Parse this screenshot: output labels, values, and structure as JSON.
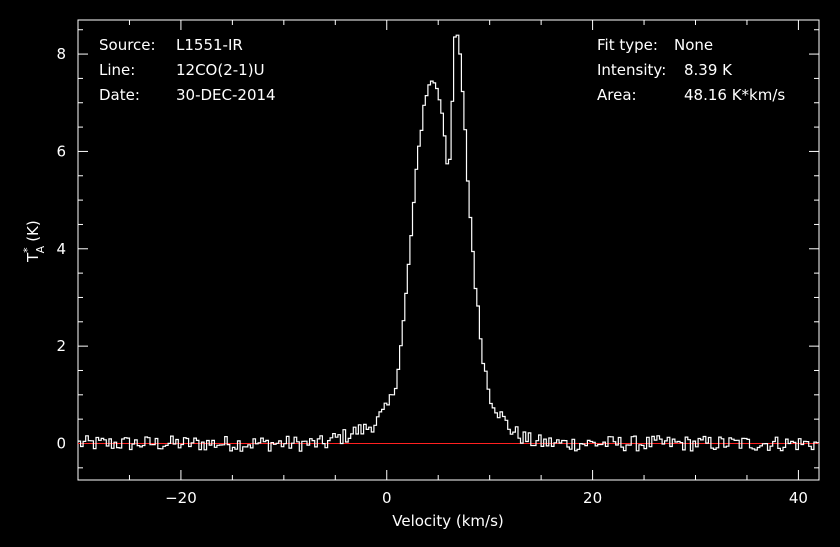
{
  "chart_data": {
    "type": "line",
    "style": "step",
    "xlabel": "Velocity (km/s)",
    "ylabel_base": "T",
    "ylabel_sup": "*",
    "ylabel_sub": "A",
    "ylabel_unit": "(K)",
    "xlim": [
      -30,
      42
    ],
    "ylim": [
      -0.75,
      8.7
    ],
    "xticks": [
      -20,
      0,
      20,
      40
    ],
    "xtick_labels": [
      "−20",
      "0",
      "20",
      "40"
    ],
    "yticks": [
      0,
      2,
      4,
      6,
      8
    ],
    "ytick_labels": [
      "0",
      "2",
      "4",
      "6",
      "8"
    ],
    "baseline": 0,
    "colors": {
      "background": "#000000",
      "axes": "#ffffff",
      "spectrum": "#ffffff",
      "baseline": "#ff2020"
    },
    "info_left": [
      {
        "key": "Source:",
        "value": "L1551-IR"
      },
      {
        "key": "Line:",
        "value": "12CO(2-1)U"
      },
      {
        "key": "Date:",
        "value": "30-DEC-2014"
      }
    ],
    "info_right": [
      {
        "key": "Fit type:",
        "value": "None"
      },
      {
        "key": "Intensity:",
        "value": "8.39 K"
      },
      {
        "key": "Area:",
        "value": "48.16 K*km/s"
      }
    ],
    "spectrum": {
      "x": [
        -30,
        -6,
        -5,
        -4,
        -3,
        -2,
        -1,
        0,
        0.5,
        1,
        1.5,
        2,
        2.5,
        3,
        3.5,
        4,
        4.5,
        5,
        5.5,
        6,
        6.3,
        6.6,
        7,
        7.5,
        8,
        8.5,
        9,
        9.5,
        10,
        11,
        12,
        13,
        14,
        15,
        17,
        20,
        42
      ],
      "y": [
        0,
        0,
        0.1,
        0.15,
        0.25,
        0.3,
        0.45,
        0.7,
        0.95,
        1.4,
        2.2,
        3.3,
        4.6,
        5.8,
        6.8,
        7.3,
        7.5,
        7.2,
        6.7,
        5.5,
        6.6,
        8.3,
        8.4,
        6.8,
        5.0,
        3.6,
        2.4,
        1.6,
        1.0,
        0.6,
        0.3,
        0.15,
        0.05,
        0.02,
        0,
        0,
        0
      ]
    }
  }
}
